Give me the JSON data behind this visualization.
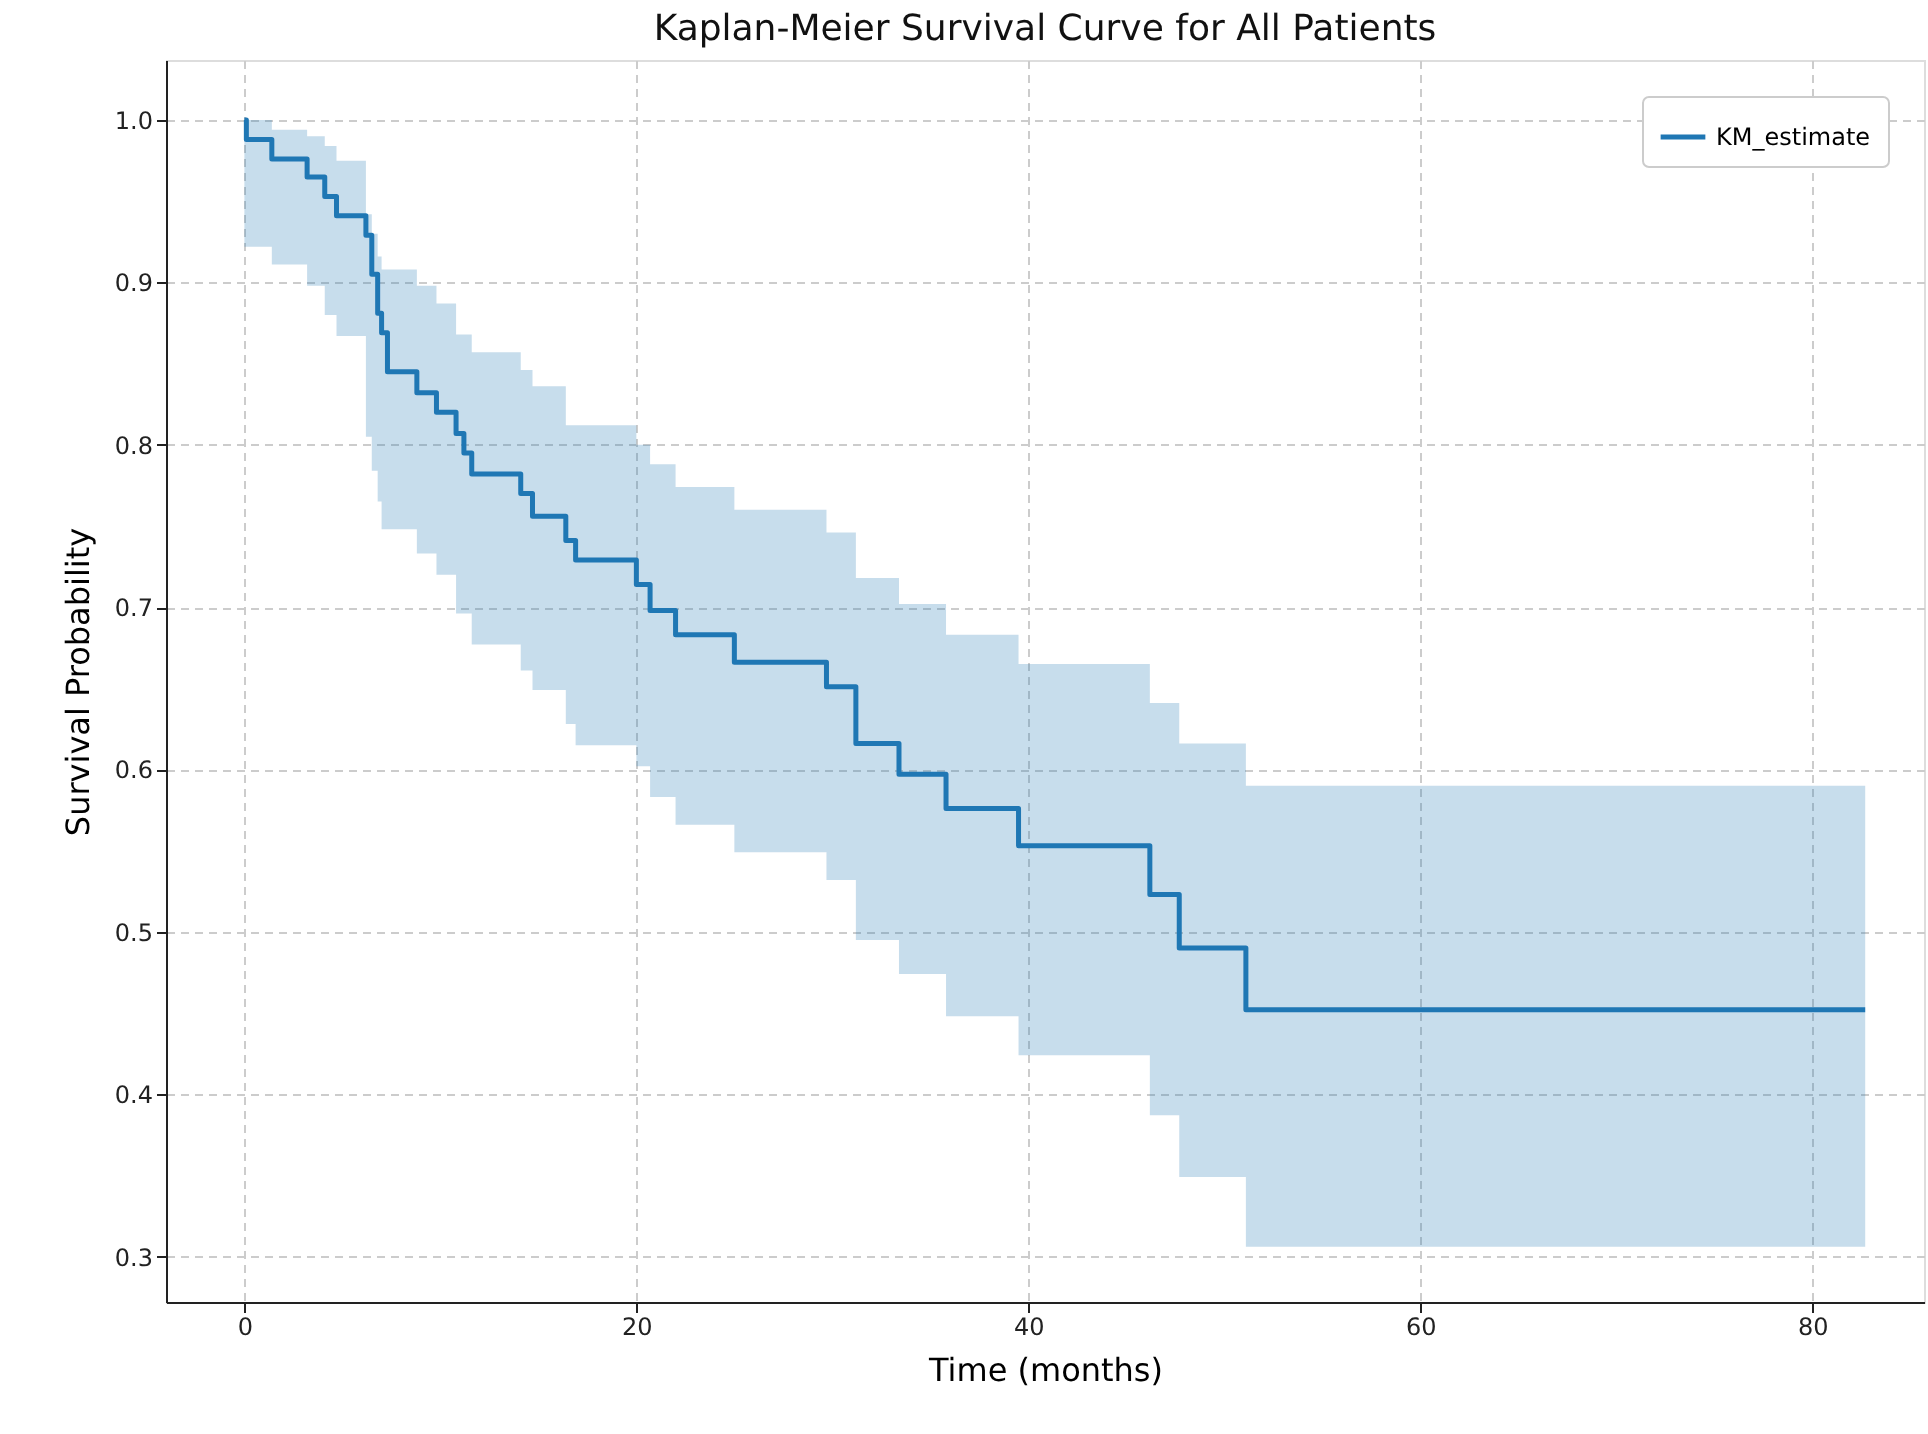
{
  "chart_data": {
    "type": "step",
    "title": "Kaplan-Meier Survival Curve for All Patients",
    "xlabel": "Time (months)",
    "ylabel": "Survival Probability",
    "x": [
      0,
      0.1,
      1.4,
      3.2,
      4.1,
      4.7,
      6.2,
      6.5,
      6.8,
      7.0,
      7.3,
      8.8,
      9.8,
      10.8,
      11.2,
      11.6,
      14.1,
      14.7,
      16.4,
      16.9,
      20.0,
      20.7,
      22.0,
      25.0,
      29.7,
      31.2,
      33.4,
      35.8,
      39.5,
      46.2,
      47.7,
      51.1,
      82.7
    ],
    "series": [
      {
        "name": "KM_estimate",
        "color": "#1f77b4",
        "values": [
          1.0,
          0.988,
          0.976,
          0.965,
          0.953,
          0.941,
          0.929,
          0.905,
          0.881,
          0.869,
          0.845,
          0.832,
          0.82,
          0.807,
          0.795,
          0.782,
          0.77,
          0.756,
          0.741,
          0.729,
          0.714,
          0.698,
          0.683,
          0.666,
          0.651,
          0.616,
          0.597,
          0.576,
          0.553,
          0.523,
          0.49,
          0.452,
          0.452
        ],
        "upper": [
          1.0,
          1.0,
          0.994,
          0.99,
          0.984,
          0.975,
          0.942,
          0.93,
          0.916,
          0.908,
          0.908,
          0.898,
          0.887,
          0.868,
          0.868,
          0.857,
          0.846,
          0.836,
          0.812,
          0.812,
          0.8,
          0.788,
          0.774,
          0.76,
          0.746,
          0.718,
          0.702,
          0.683,
          0.665,
          0.641,
          0.616,
          0.59,
          0.59
        ],
        "lower": [
          0.922,
          0.922,
          0.911,
          0.898,
          0.88,
          0.867,
          0.805,
          0.784,
          0.765,
          0.748,
          0.748,
          0.733,
          0.72,
          0.696,
          0.696,
          0.677,
          0.661,
          0.649,
          0.628,
          0.615,
          0.602,
          0.583,
          0.566,
          0.549,
          0.532,
          0.495,
          0.474,
          0.448,
          0.424,
          0.387,
          0.349,
          0.306,
          0.306
        ]
      }
    ],
    "xlim": [
      -4.0,
      85.7
    ],
    "ylim": [
      0.272,
      1.037
    ],
    "xticks": [
      0,
      20,
      40,
      60,
      80
    ],
    "yticks": [
      0.3,
      0.4,
      0.5,
      0.6,
      0.7,
      0.8,
      0.9,
      {
        "value": 1.0,
        "label": "1.0"
      }
    ],
    "grid": true,
    "legend": "top right"
  }
}
